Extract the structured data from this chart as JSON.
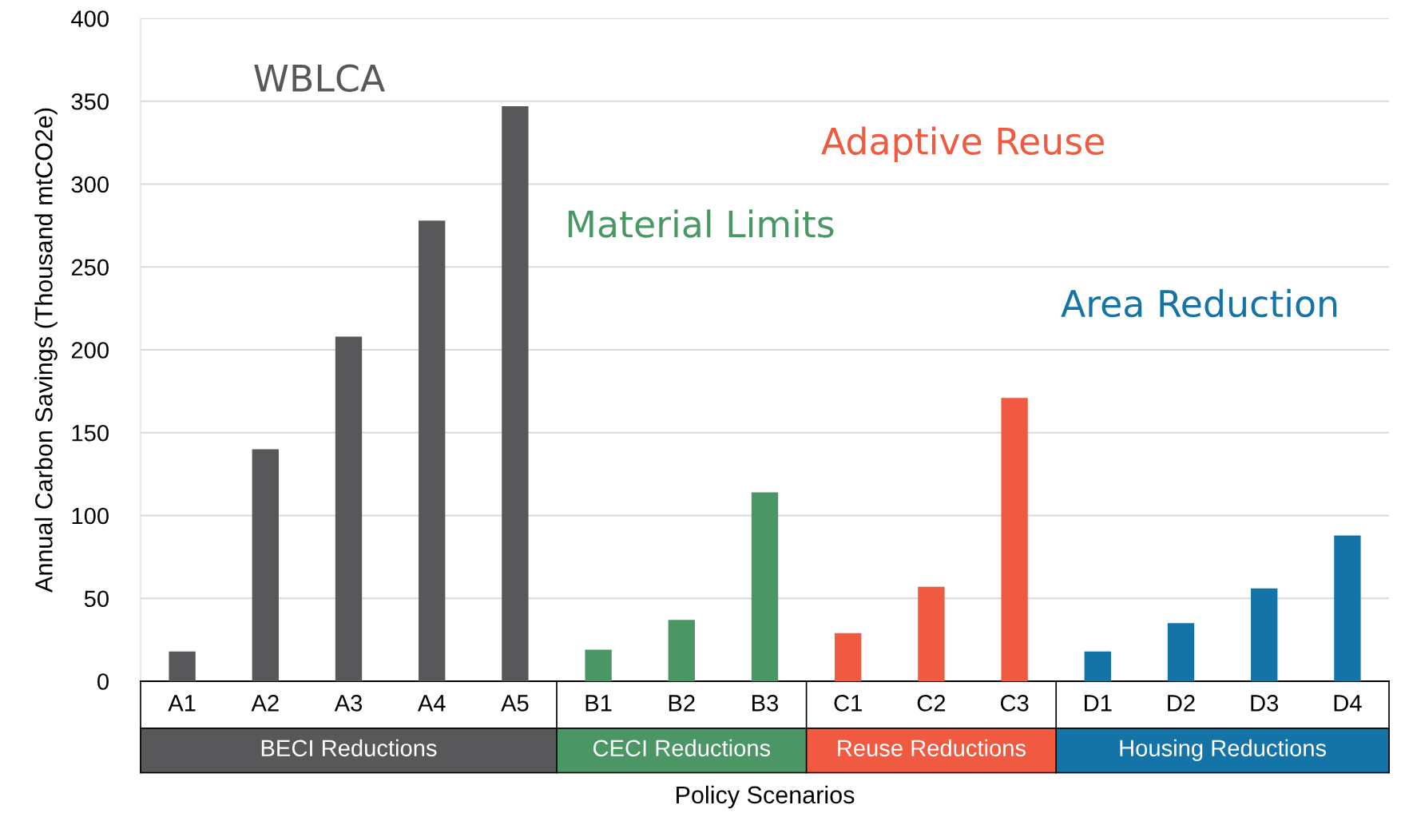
{
  "chart_data": {
    "type": "bar",
    "xlabel": "Policy Scenarios",
    "ylabel": "Annual Carbon Savings (Thousand mtCO2e)",
    "categories": [
      "A1",
      "A2",
      "A3",
      "A4",
      "A5",
      "B1",
      "B2",
      "B3",
      "C1",
      "C2",
      "C3",
      "D1",
      "D2",
      "D3",
      "D4"
    ],
    "series": [
      {
        "name": "BECI Reductions",
        "color": "#58585a",
        "values": [
          18,
          140,
          208,
          278,
          347,
          null,
          null,
          null,
          null,
          null,
          null,
          null,
          null,
          null,
          null
        ]
      },
      {
        "name": "CECI Reductions",
        "color": "#4a9665",
        "values": [
          null,
          null,
          null,
          null,
          null,
          19,
          37,
          114,
          null,
          null,
          null,
          null,
          null,
          null,
          null
        ]
      },
      {
        "name": "Reuse Reductions",
        "color": "#f05a40",
        "values": [
          null,
          null,
          null,
          null,
          null,
          null,
          null,
          null,
          29,
          57,
          171,
          null,
          null,
          null,
          null
        ]
      },
      {
        "name": "Housing Reductions",
        "color": "#1474a8",
        "values": [
          null,
          null,
          null,
          null,
          null,
          null,
          null,
          null,
          null,
          null,
          null,
          18,
          35,
          56,
          88
        ]
      }
    ],
    "annotations": [
      "WBLCA",
      "Material Limits",
      "Adaptive Reuse",
      "Area Reduction"
    ],
    "ylim": [
      0,
      400
    ],
    "yticks": [
      0,
      50,
      100,
      150,
      200,
      250,
      300,
      350,
      400
    ],
    "grid": "y",
    "legend": false
  }
}
